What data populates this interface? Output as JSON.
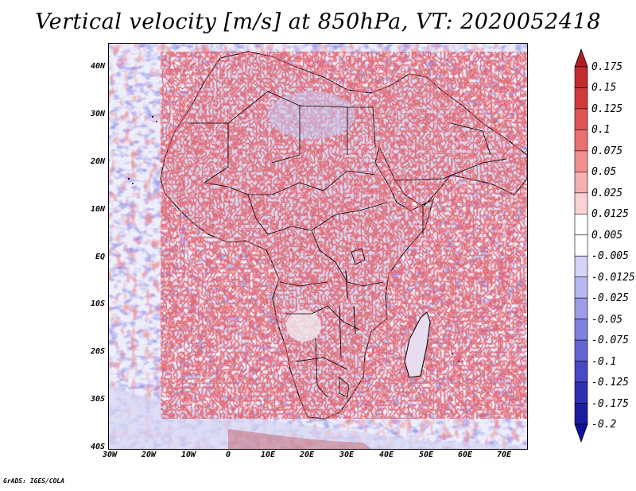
{
  "title": "Vertical velocity [m/s] at 850hPa, VT: 2020052418",
  "credit": "GrADS: IGES/COLA",
  "map": {
    "region": "Africa",
    "lon_range": [
      -30,
      75
    ],
    "lat_range": [
      -40,
      45
    ],
    "lat_ticks": [
      "40N",
      "30N",
      "20N",
      "10N",
      "EQ",
      "10S",
      "20S",
      "30S",
      "40S"
    ],
    "lon_ticks": [
      "30W",
      "20W",
      "10W",
      "0",
      "10E",
      "20E",
      "30E",
      "40E",
      "50E",
      "60E",
      "70E"
    ]
  },
  "colorbar": {
    "labels": [
      "0.175",
      "0.15",
      "0.125",
      "0.1",
      "0.075",
      "0.05",
      "0.025",
      "0.0125",
      "0.005",
      "-0.005",
      "-0.0125",
      "-0.025",
      "-0.05",
      "-0.075",
      "-0.1",
      "-0.125",
      "-0.175",
      "-0.2"
    ],
    "colors": [
      "#b01e24",
      "#c22a2e",
      "#d23a3a",
      "#e25454",
      "#ea7070",
      "#f29090",
      "#f7b0b0",
      "#fbd0d0",
      "#ffffff",
      "#ffffff",
      "#d4d4f6",
      "#b8b8ef",
      "#9c9ce8",
      "#8080df",
      "#6464d4",
      "#4848c6",
      "#3030b4",
      "#1c1ca0",
      "#1010a0"
    ]
  }
}
